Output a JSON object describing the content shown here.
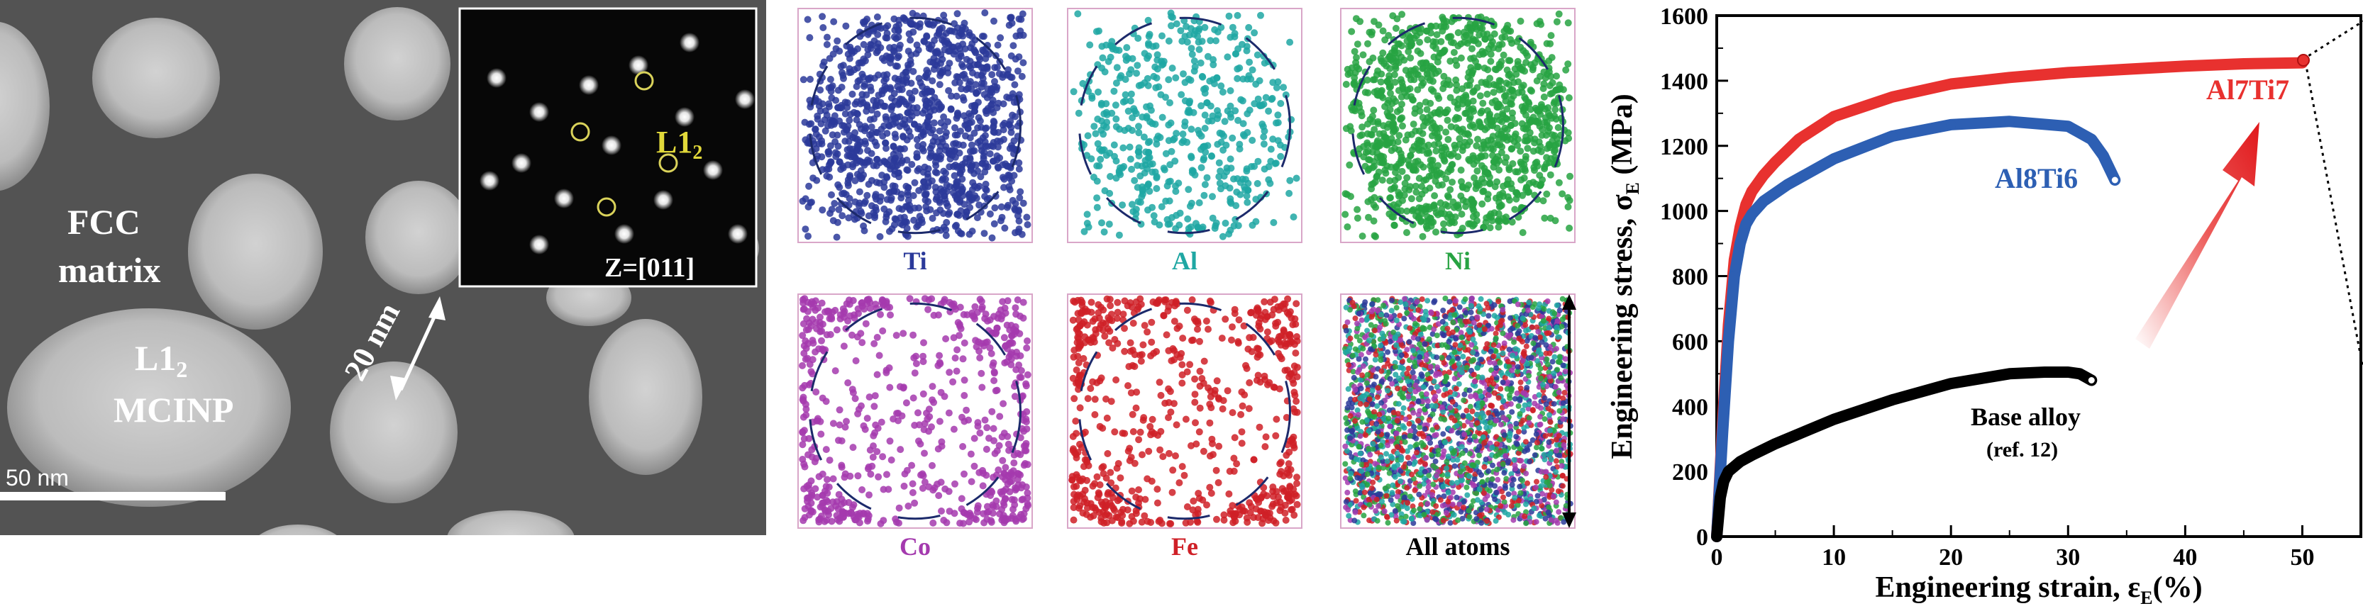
{
  "tem": {
    "labels": {
      "matrix_line1": "FCC",
      "matrix_line2": "matrix",
      "precip_base": "L1",
      "precip_sub": "2",
      "precip_line2": "MCINP",
      "width_label": "20 nm",
      "scalebar": "50 nm"
    },
    "inset": {
      "phase_base": "L1",
      "phase_sub": "2",
      "zone_axis": "Z=[011]"
    }
  },
  "apt": {
    "panels": [
      {
        "label": "Ti",
        "color": "#2b3a9a"
      },
      {
        "label": "Al",
        "color": "#1fa7a3"
      },
      {
        "label": "Ni",
        "color": "#27a342"
      },
      {
        "label": "Co",
        "color": "#a43aae"
      },
      {
        "label": "Fe",
        "color": "#cf2027"
      },
      {
        "label": "All atoms",
        "color": "#000000"
      }
    ]
  },
  "chart_data": {
    "type": "line",
    "xlabel": "Engineering strain, ε",
    "xlabel_sub": "E",
    "xlabel_unit": "(%)",
    "ylabel": "Engineering stress, σ",
    "ylabel_sub": "E",
    "ylabel_unit": " (MPa)",
    "xlim": [
      0,
      55
    ],
    "ylim": [
      0,
      1600
    ],
    "x_ticks": [
      0,
      10,
      20,
      30,
      40,
      50
    ],
    "y_ticks": [
      0,
      200,
      400,
      600,
      800,
      1000,
      1200,
      1400,
      1600
    ],
    "grid": false,
    "series": [
      {
        "name": "Al7Ti7",
        "color": "#e8312f",
        "x": [
          0,
          0.5,
          1,
          1.5,
          2,
          2.5,
          3,
          4,
          5,
          7,
          10,
          15,
          20,
          25,
          30,
          35,
          40,
          45,
          50
        ],
        "y": [
          0,
          350,
          650,
          850,
          950,
          1020,
          1060,
          1110,
          1150,
          1220,
          1290,
          1350,
          1390,
          1410,
          1425,
          1435,
          1445,
          1452,
          1455
        ]
      },
      {
        "name": "Al8Ti6",
        "color": "#2d5fb3",
        "x": [
          0,
          0.5,
          1,
          1.5,
          2,
          2.5,
          3,
          4,
          6,
          10,
          15,
          20,
          25,
          30,
          32,
          33,
          34
        ],
        "y": [
          0,
          320,
          600,
          800,
          900,
          960,
          990,
          1030,
          1080,
          1160,
          1230,
          1265,
          1275,
          1260,
          1220,
          1170,
          1095
        ]
      },
      {
        "name": "Base alloy",
        "note": "(ref. 12)",
        "color": "#000000",
        "x": [
          0,
          0.3,
          0.6,
          1,
          2,
          3,
          5,
          8,
          10,
          15,
          20,
          25,
          28,
          30,
          31,
          32
        ],
        "y": [
          0,
          120,
          170,
          200,
          230,
          250,
          285,
          330,
          360,
          420,
          470,
          500,
          505,
          505,
          500,
          480
        ]
      }
    ]
  }
}
